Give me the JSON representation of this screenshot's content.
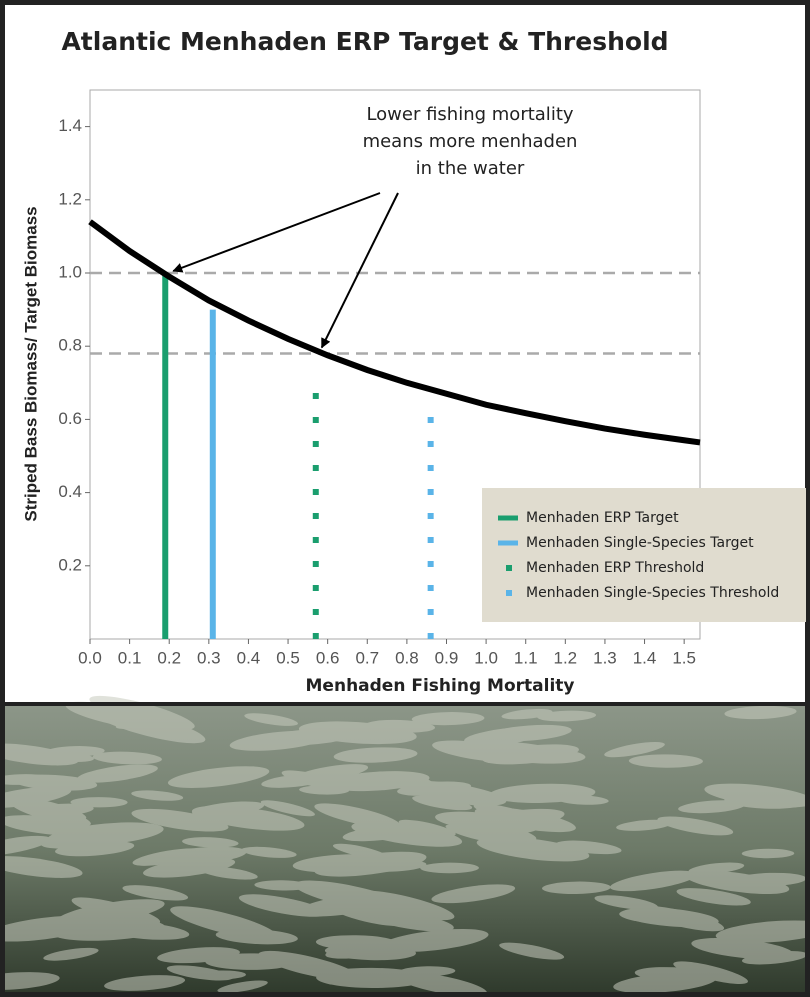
{
  "chart_data": {
    "type": "line",
    "title": "Atlantic Menhaden ERP Target & Threshold",
    "xlabel": "Menhaden Fishing Mortality",
    "ylabel": "Striped Bass Biomass/ Target Biomass",
    "x": [
      0,
      0.1,
      0.2,
      0.3,
      0.4,
      0.5,
      0.6,
      0.7,
      0.8,
      0.9,
      1.0,
      1.1,
      1.2,
      1.3,
      1.4,
      1.5,
      1.54
    ],
    "values": [
      1.14,
      1.06,
      0.99,
      0.925,
      0.87,
      0.82,
      0.775,
      0.735,
      0.7,
      0.67,
      0.64,
      0.617,
      0.595,
      0.575,
      0.558,
      0.543,
      0.537
    ],
    "color": "#000000",
    "xlim": [
      0,
      1.54
    ],
    "ylim": [
      0,
      1.5
    ],
    "xticks": [
      {
        "value": 0,
        "label": "0.0"
      },
      0.1,
      0.2,
      0.3,
      0.4,
      0.5,
      0.6,
      0.7,
      0.8,
      0.9,
      {
        "value": 1,
        "label": "1.0"
      },
      1.1,
      1.2,
      1.3,
      1.4,
      1.5
    ],
    "yticks": [
      0.2,
      0.4,
      0.6,
      0.8,
      {
        "value": 1,
        "label": "1.0"
      },
      1.2,
      1.4
    ],
    "reference_lines": [
      1.0,
      0.78
    ],
    "vlines": [
      {
        "name": "Menhaden ERP Target",
        "color": "#1a9e6e",
        "x": 0.19,
        "top": 1.0,
        "style": "solid"
      },
      {
        "name": "Menhaden Single-Species Target",
        "color": "#5ab4e8",
        "x": 0.31,
        "top": 0.9,
        "style": "solid"
      },
      {
        "name": "Menhaden ERP Threshold",
        "color": "#1a9e6e",
        "x": 0.57,
        "top": 0.72,
        "style": "dotted"
      },
      {
        "name": "Menhaden Single-Species Threshold",
        "color": "#5ab4e8",
        "x": 0.86,
        "top": 0.63,
        "style": "dotted"
      }
    ],
    "annotation": [
      "Lower fishing mortality",
      "means more menhaden",
      "in the water"
    ]
  }
}
